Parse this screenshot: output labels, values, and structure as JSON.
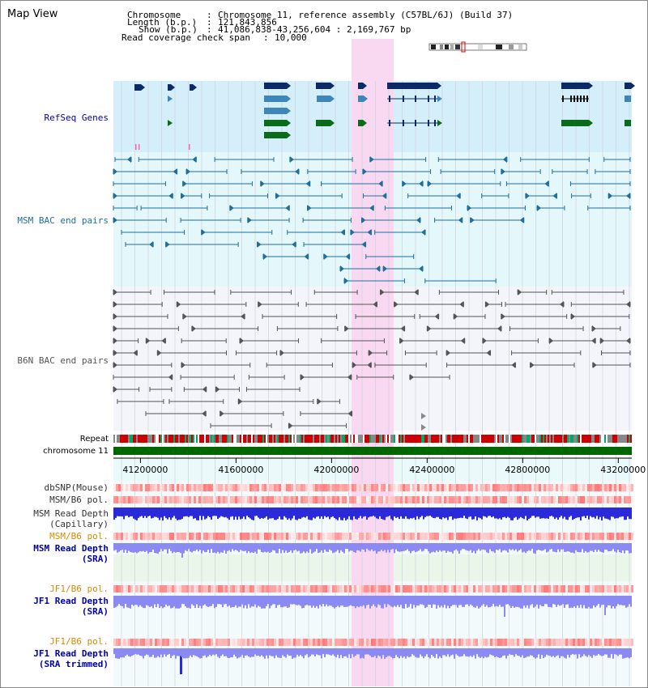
{
  "map_title": "Map View",
  "info": {
    "chromosome_key": "Chromosome",
    "chromosome_val": "Chromosome 11, reference assembly (C57BL/6J) (Build 37)",
    "length_key": "Length (b.p.)",
    "length_val": "121,843,856",
    "show_key": "Show (b.p.)",
    "show_val": "41,086,838-43,256,604 : 2,169,767 bp",
    "coverage_key": "Read coverage check span",
    "coverage_val": "10,000"
  },
  "tracks": {
    "refseq": "RefSeq Genes",
    "msm_bac": "MSM BAC end pairs",
    "b6n_bac": "B6N BAC end pairs",
    "repeat": "Repeat",
    "chromosome": "chromosome 11",
    "dbsnp": "dbSNP(Mouse)",
    "msm_b6_pol_1": "MSM/B6 pol.",
    "msm_depth_cap_1": "MSM Read Depth",
    "msm_depth_cap_2": "(Capillary)",
    "msm_b6_pol_2": "MSM/B6 pol.",
    "msm_depth_sra_1": "MSM Read Depth",
    "msm_depth_sra_2": "(SRA)",
    "jf1_b6_pol_1": "JF1/B6 pol.",
    "jf1_depth_sra_1": "JF1 Read Depth",
    "jf1_depth_sra_2": "(SRA)",
    "jf1_b6_pol_2": "JF1/B6 pol.",
    "jf1_depth_trim_1": "JF1 Read Depth",
    "jf1_depth_trim_2": "(SRA trimmed)"
  },
  "axis_ticks": [
    "41200000",
    "41600000",
    "42000000",
    "42400000",
    "42800000",
    "43200000"
  ],
  "colors": {
    "gene_navy": "#0b2a66",
    "gene_blue": "#3f86b8",
    "gene_green": "#0a6b1a",
    "msm_bac": "#1e6e9e",
    "b6n_bac": "#555555",
    "refseq_bg": "#d5effa",
    "msm_bg": "#e4f7fa",
    "highlight": "#f9d9f1",
    "chromosome_bar": "#006600",
    "label_blue": "#0000aa",
    "label_orange": "#dd8800",
    "depth_blue": "#2a2ad8",
    "depth_light": "#8a8af2"
  }
}
